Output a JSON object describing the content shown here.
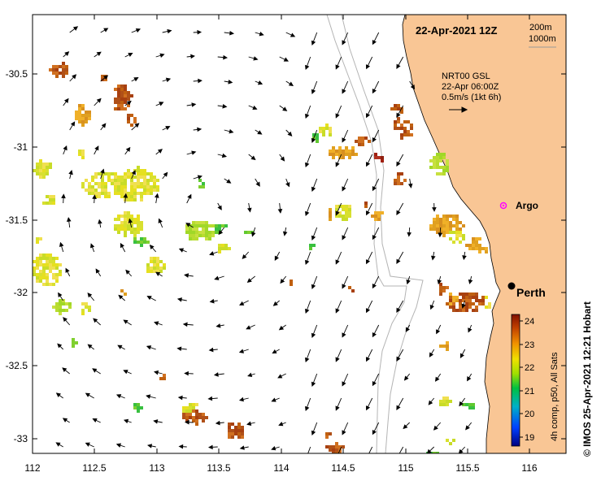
{
  "map": {
    "title": "22-Apr-2021 12Z",
    "contour_legend": [
      "200m",
      "1000m"
    ],
    "model": {
      "line1": "NRT00 GSL",
      "line2": "22-Apr 06:00Z",
      "line3": "0.5m/s (1kt 6h)"
    },
    "argo_label": "Argo",
    "city_label": "Perth",
    "credit": "© IMOS 25-Apr-2021 12:21 Hobart",
    "colorbar": {
      "title": "4h comp, p50, All Sats",
      "ticks": [
        "24",
        "23",
        "22",
        "21",
        "20",
        "19"
      ]
    },
    "x_ticks": [
      "112",
      "112.5",
      "113",
      "113.5",
      "114",
      "114.5",
      "115",
      "115.5",
      "116"
    ],
    "y_ticks": [
      "-30.5",
      "-31",
      "-31.5",
      "-32",
      "-32.5",
      "-33"
    ],
    "colors": {
      "land": "#f9c695",
      "argo": "#ff00ff",
      "contour": "#b4b4b4"
    }
  }
}
